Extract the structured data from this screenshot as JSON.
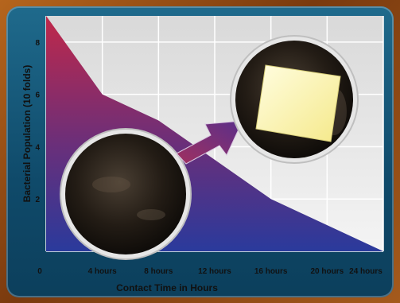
{
  "chart_data": {
    "type": "area",
    "title": "",
    "xlabel": "Contact Time in Hours",
    "ylabel": "Bacterial Population (10 folds)",
    "x": [
      0,
      4,
      8,
      12,
      16,
      20,
      24
    ],
    "x_tick_labels": [
      "0",
      "4 hours",
      "8 hours",
      "12 hours",
      "16 hours",
      "20 hours",
      "24 hours"
    ],
    "y_ticks": [
      2,
      4,
      6,
      8
    ],
    "y_tick_labels": [
      "2",
      "4",
      "6",
      "8"
    ],
    "ylim": [
      0,
      9
    ],
    "xlim": [
      0,
      24
    ],
    "series": [
      {
        "values": [
          9,
          6,
          5,
          3.5,
          2,
          1,
          0
        ]
      }
    ],
    "grid": true,
    "colors": {
      "top": "#c0284a",
      "bottom": "#2a3a9c",
      "arrow": "#8a2f6a"
    }
  }
}
